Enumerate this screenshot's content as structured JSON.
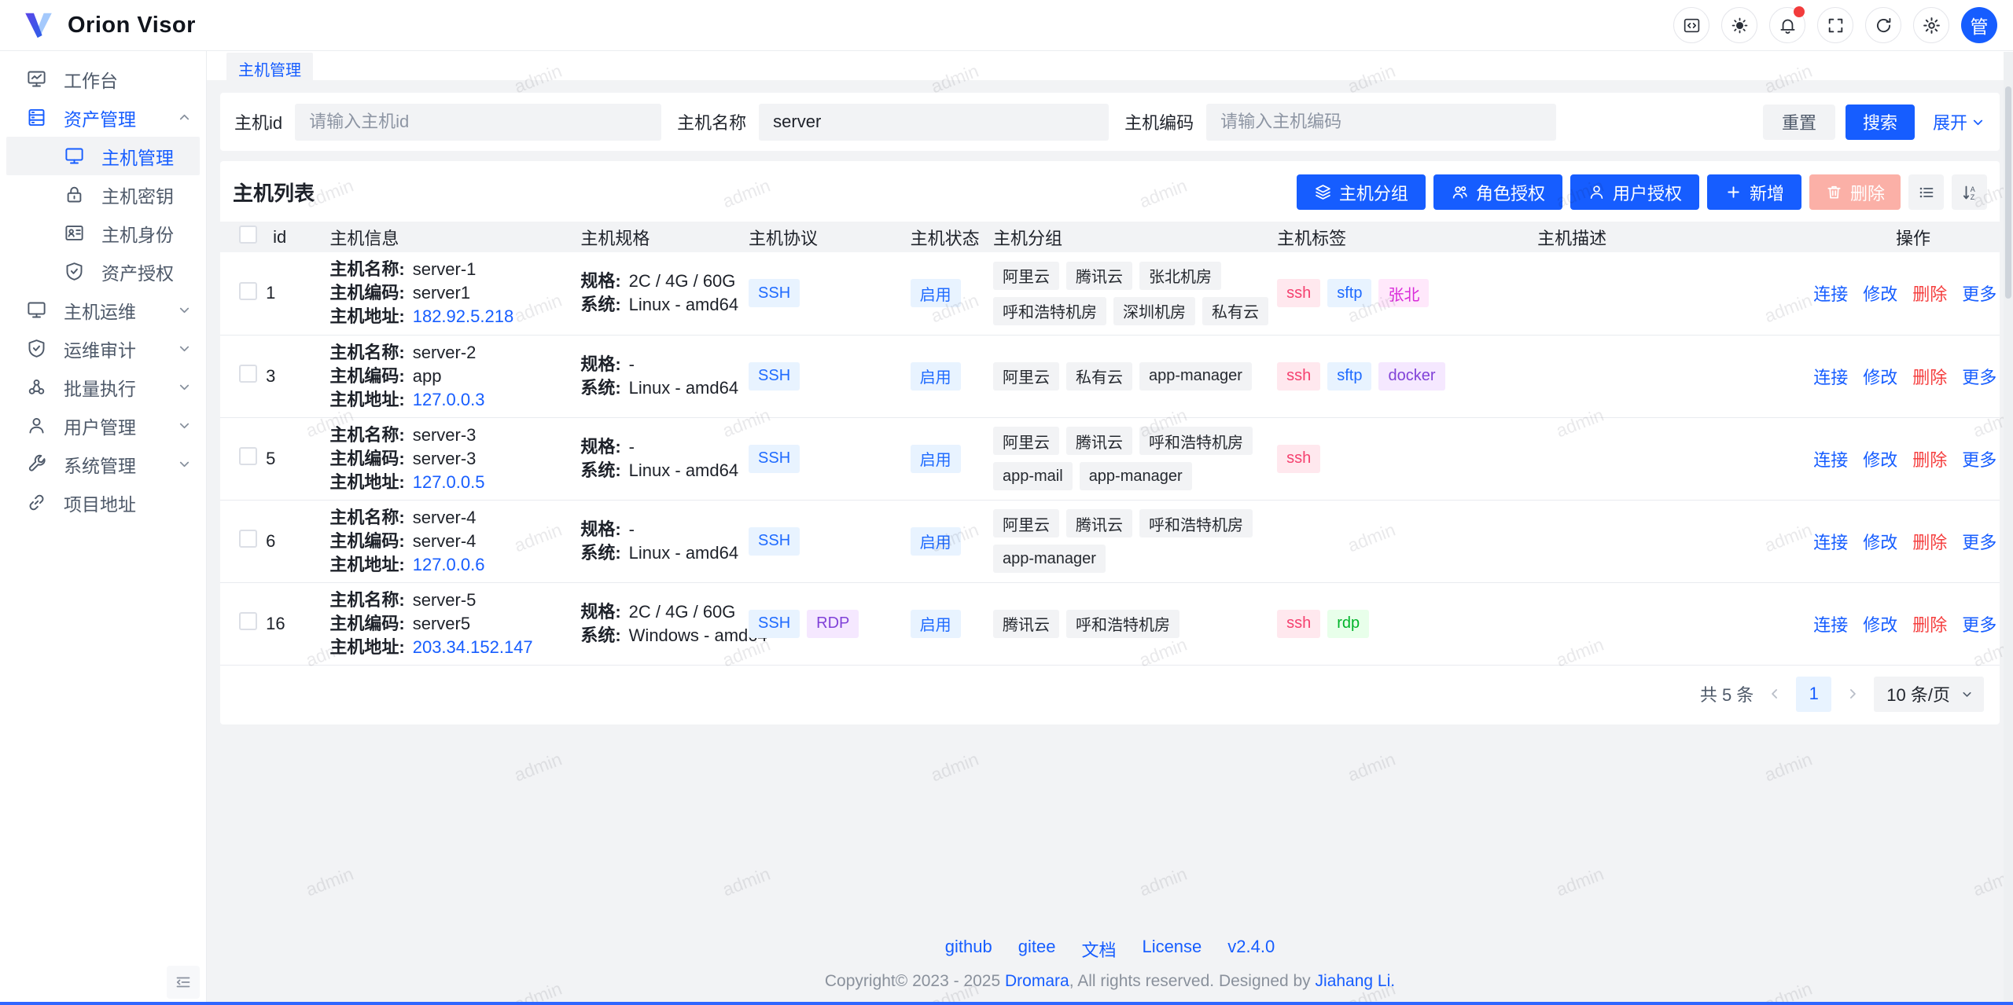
{
  "app": {
    "title": "Orion Visor",
    "avatar_text": "管",
    "accent_color": "#165dff",
    "danger_color": "#f53f3f"
  },
  "header": {
    "icons": [
      "code-icon",
      "theme-sun-icon",
      "notifications-bell-icon",
      "fullscreen-icon",
      "refresh-icon",
      "settings-gear-icon"
    ]
  },
  "sidebar": {
    "items": [
      {
        "label": "工作台"
      },
      {
        "label": "资产管理"
      },
      {
        "label": "主机管理"
      },
      {
        "label": "主机密钥"
      },
      {
        "label": "主机身份"
      },
      {
        "label": "资产授权"
      },
      {
        "label": "主机运维"
      },
      {
        "label": "运维审计"
      },
      {
        "label": "批量执行"
      },
      {
        "label": "用户管理"
      },
      {
        "label": "系统管理"
      },
      {
        "label": "项目地址"
      }
    ]
  },
  "tabs": {
    "active": "主机管理"
  },
  "filter": {
    "host_id": {
      "label": "主机id",
      "placeholder": "请输入主机id",
      "value": ""
    },
    "host_name": {
      "label": "主机名称",
      "placeholder": "",
      "value": "server"
    },
    "host_code": {
      "label": "主机编码",
      "placeholder": "请输入主机编码",
      "value": ""
    },
    "reset": "重置",
    "search": "搜索",
    "expand": "展开"
  },
  "table": {
    "title": "主机列表",
    "toolbar": {
      "group": "主机分组",
      "role_grant": "角色授权",
      "user_grant": "用户授权",
      "add": "新增",
      "delete": "删除"
    },
    "columns": [
      "id",
      "主机信息",
      "主机规格",
      "主机协议",
      "主机状态",
      "主机分组",
      "主机标签",
      "主机描述",
      "操作"
    ],
    "info_labels": {
      "name": "主机名称:",
      "code": "主机编码:",
      "address": "主机地址:"
    },
    "spec_labels": {
      "spec": "规格:",
      "system": "系统:"
    },
    "actions": {
      "connect": "连接",
      "edit": "修改",
      "delete": "删除",
      "more": "更多"
    },
    "rows": [
      {
        "id": "1",
        "name": "server-1",
        "code": "server1",
        "address": "182.92.5.218",
        "spec": "2C / 4G / 60G",
        "system": "Linux - amd64",
        "protocols": [
          {
            "label": "SSH",
            "type": "blue"
          }
        ],
        "status": "启用",
        "groups": [
          "阿里云",
          "腾讯云",
          "张北机房",
          "呼和浩特机房",
          "深圳机房",
          "私有云"
        ],
        "tags": [
          {
            "label": "ssh",
            "type": "rose"
          },
          {
            "label": "sftp",
            "type": "blue"
          },
          {
            "label": "张北",
            "type": "magenta"
          }
        ],
        "description": ""
      },
      {
        "id": "3",
        "name": "server-2",
        "code": "app",
        "address": "127.0.0.3",
        "spec": "-",
        "system": "Linux - amd64",
        "protocols": [
          {
            "label": "SSH",
            "type": "blue"
          }
        ],
        "status": "启用",
        "groups": [
          "阿里云",
          "私有云",
          "app-manager"
        ],
        "tags": [
          {
            "label": "ssh",
            "type": "rose"
          },
          {
            "label": "sftp",
            "type": "blue"
          },
          {
            "label": "docker",
            "type": "purple"
          }
        ],
        "description": ""
      },
      {
        "id": "5",
        "name": "server-3",
        "code": "server-3",
        "address": "127.0.0.5",
        "spec": "-",
        "system": "Linux - amd64",
        "protocols": [
          {
            "label": "SSH",
            "type": "blue"
          }
        ],
        "status": "启用",
        "groups": [
          "阿里云",
          "腾讯云",
          "呼和浩特机房",
          "app-mail",
          "app-manager"
        ],
        "tags": [
          {
            "label": "ssh",
            "type": "rose"
          }
        ],
        "description": ""
      },
      {
        "id": "6",
        "name": "server-4",
        "code": "server-4",
        "address": "127.0.0.6",
        "spec": "-",
        "system": "Linux - amd64",
        "protocols": [
          {
            "label": "SSH",
            "type": "blue"
          }
        ],
        "status": "启用",
        "groups": [
          "阿里云",
          "腾讯云",
          "呼和浩特机房",
          "app-manager"
        ],
        "tags": [],
        "description": ""
      },
      {
        "id": "16",
        "name": "server-5",
        "code": "server5",
        "address": "203.34.152.147",
        "spec": "2C / 4G / 60G",
        "system": "Windows - amd64",
        "protocols": [
          {
            "label": "SSH",
            "type": "blue"
          },
          {
            "label": "RDP",
            "type": "purple"
          }
        ],
        "status": "启用",
        "groups": [
          "腾讯云",
          "呼和浩特机房"
        ],
        "tags": [
          {
            "label": "ssh",
            "type": "rose"
          },
          {
            "label": "rdp",
            "type": "green"
          }
        ],
        "description": ""
      }
    ]
  },
  "pagination": {
    "total": "共 5 条",
    "page": "1",
    "page_size": "10 条/页"
  },
  "footer": {
    "links": [
      "github",
      "gitee",
      "文档",
      "License",
      "v2.4.0"
    ],
    "copyright_prefix": "Copyright© 2023 - 2025 ",
    "copyright_brand": "Dromara",
    "copyright_middle": ", All rights reserved. Designed by ",
    "copyright_author": "Jiahang Li."
  },
  "watermark": {
    "text": "admin"
  }
}
